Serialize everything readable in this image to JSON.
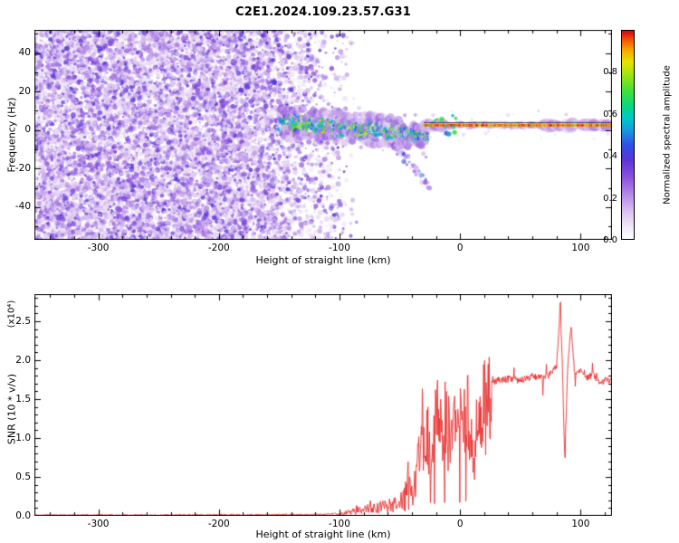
{
  "title": "C2E1.2024.109.23.57.G31",
  "chart_data": [
    {
      "type": "heatmap",
      "xlabel": "Height of straight line (km)",
      "ylabel": "Frequency (Hz)",
      "xlim": [
        -353,
        126
      ],
      "ylim": [
        -57,
        52
      ],
      "xticks": [
        -300,
        -200,
        -100,
        0,
        100
      ],
      "yticks": [
        -40,
        -20,
        0,
        20,
        40
      ],
      "colorbar": {
        "label": "Normalized spectral amplitude",
        "ticks": [
          0.0,
          0.2,
          0.4,
          0.6,
          0.8
        ],
        "lim": [
          0,
          1
        ],
        "colormap": [
          {
            "t": 0.0,
            "c": "#ffffff"
          },
          {
            "t": 0.05,
            "c": "#f3ecfa"
          },
          {
            "t": 0.13,
            "c": "#dcc2f0"
          },
          {
            "t": 0.22,
            "c": "#b184e6"
          },
          {
            "t": 0.3,
            "c": "#8a4fdd"
          },
          {
            "t": 0.38,
            "c": "#5c33d6"
          },
          {
            "t": 0.45,
            "c": "#2f4fe8"
          },
          {
            "t": 0.52,
            "c": "#1898e0"
          },
          {
            "t": 0.58,
            "c": "#00c8c8"
          },
          {
            "t": 0.64,
            "c": "#0cd87c"
          },
          {
            "t": 0.71,
            "c": "#3fe03a"
          },
          {
            "t": 0.78,
            "c": "#96e414"
          },
          {
            "t": 0.85,
            "c": "#e6e400"
          },
          {
            "t": 0.91,
            "c": "#f6a400"
          },
          {
            "t": 0.96,
            "c": "#f04e00"
          },
          {
            "t": 1.0,
            "c": "#d6001c"
          }
        ]
      },
      "regions": {
        "background_noise": {
          "x_range": [
            -353,
            -85
          ],
          "y_range": [
            -57,
            52
          ],
          "amplitude_range": [
            0.06,
            0.4
          ],
          "description": "dense speckled purple noise filling all frequencies, fading out between -185 and -85 km"
        },
        "scattered_echo": {
          "x_range": [
            -152,
            -28
          ],
          "center_frequency_path": [
            [
              -152,
              4
            ],
            [
              -125,
              3
            ],
            [
              -100,
              1.5
            ],
            [
              -80,
              0.5
            ],
            [
              -60,
              -1
            ],
            [
              -42,
              -2.5
            ],
            [
              -28,
              -3.5
            ]
          ],
          "frequency_spread_hz": 6.5,
          "amplitude_range": [
            0.42,
            0.8
          ],
          "description": "bright cyan-green scattered echo blob drifting slightly downward with purple fringe"
        },
        "descending_tail": {
          "x_range": [
            -60,
            -25
          ],
          "y_from": -5,
          "y_to": -29,
          "amplitude_range": [
            0.1,
            0.45
          ],
          "description": "faint purple tail sweeping down toward -30 Hz"
        },
        "carrier_line": {
          "x_range": [
            -30,
            126
          ],
          "y_center": 2.5,
          "amplitude_range": [
            0.72,
            1.0
          ],
          "description": "thin red-orange-yellow carrier line at ~0 Hz with purple halo, thin dark line just above it, halo blobs near +75..+95 and +100..+122 km"
        }
      }
    },
    {
      "type": "line",
      "xlabel": "Height of straight line (km)",
      "ylabel": "SNR (10 * v/v)",
      "y_scale_note": "(x10⁴)",
      "xlim": [
        -353,
        126
      ],
      "ylim": [
        0,
        2.85
      ],
      "xticks": [
        -300,
        -200,
        -100,
        0,
        100
      ],
      "yticks": [
        0.0,
        0.5,
        1.0,
        1.5,
        2.0,
        2.5
      ],
      "color": "#e93030",
      "noise_amplitude": 0.08,
      "profile": [
        [
          -353,
          0.01
        ],
        [
          -250,
          0.01
        ],
        [
          -150,
          0.015
        ],
        [
          -110,
          0.02
        ],
        [
          -100,
          0.04
        ],
        [
          -90,
          0.07
        ],
        [
          -85,
          0.12
        ],
        [
          -80,
          0.09
        ],
        [
          -75,
          0.18
        ],
        [
          -70,
          0.12
        ],
        [
          -65,
          0.22
        ],
        [
          -60,
          0.15
        ],
        [
          -55,
          0.28
        ],
        [
          -50,
          0.2
        ],
        [
          -46,
          0.45
        ],
        [
          -43,
          0.6
        ],
        [
          -40,
          0.35
        ],
        [
          -37,
          0.55
        ],
        [
          -34,
          1.0
        ],
        [
          -31,
          1.4
        ],
        [
          -29,
          0.9
        ],
        [
          -27,
          1.25
        ],
        [
          -24,
          0.85
        ],
        [
          -21,
          1.3
        ],
        [
          -18,
          1.5
        ],
        [
          -15,
          1.05
        ],
        [
          -12,
          1.45
        ],
        [
          -9,
          1.2
        ],
        [
          -6,
          1.5
        ],
        [
          -3,
          1.3
        ],
        [
          0,
          1.45
        ],
        [
          3,
          1.25
        ],
        [
          6,
          1.55
        ],
        [
          9,
          1.35
        ],
        [
          12,
          0.9
        ],
        [
          15,
          1.5
        ],
        [
          18,
          1.55
        ],
        [
          22,
          1.65
        ],
        [
          26,
          1.7
        ],
        [
          32,
          1.74
        ],
        [
          40,
          1.76
        ],
        [
          50,
          1.74
        ],
        [
          60,
          1.79
        ],
        [
          70,
          1.77
        ],
        [
          76,
          1.84
        ],
        [
          80,
          1.92
        ],
        [
          83,
          2.7
        ],
        [
          85,
          1.88
        ],
        [
          87,
          0.62
        ],
        [
          89,
          1.86
        ],
        [
          92,
          2.45
        ],
        [
          95,
          1.82
        ],
        [
          100,
          1.86
        ],
        [
          105,
          1.76
        ],
        [
          110,
          1.82
        ],
        [
          116,
          1.7
        ],
        [
          122,
          1.76
        ],
        [
          127,
          1.72
        ]
      ]
    }
  ]
}
